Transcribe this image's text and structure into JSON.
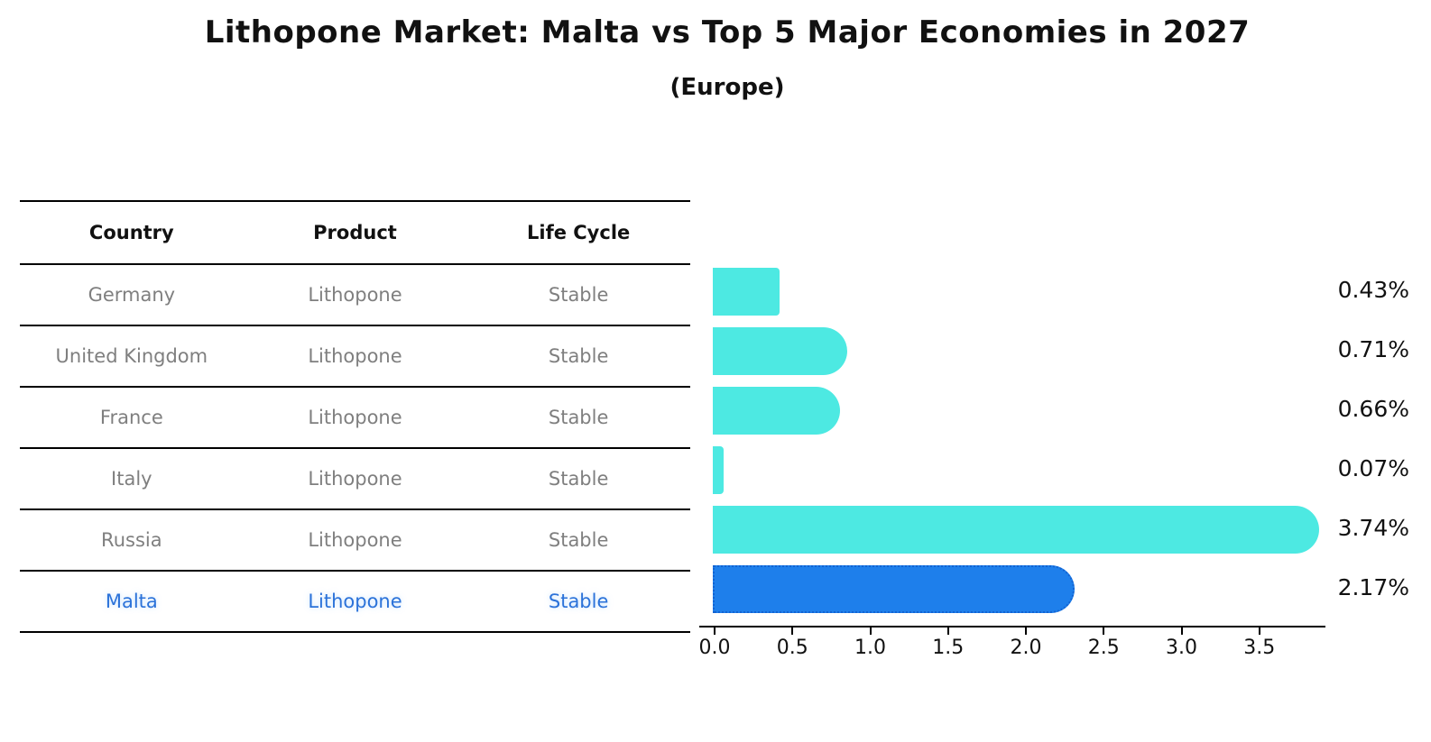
{
  "title": "Lithopone Market: Malta vs Top 5 Major Economies in 2027",
  "subtitle": "(Europe)",
  "table": {
    "headers": [
      "Country",
      "Product",
      "Life Cycle"
    ],
    "rows": [
      {
        "country": "Germany",
        "product": "Lithopone",
        "life_cycle": "Stable"
      },
      {
        "country": "United Kingdom",
        "product": "Lithopone",
        "life_cycle": "Stable"
      },
      {
        "country": "France",
        "product": "Lithopone",
        "life_cycle": "Stable"
      },
      {
        "country": "Italy",
        "product": "Lithopone",
        "life_cycle": "Stable"
      },
      {
        "country": "Russia",
        "product": "Lithopone",
        "life_cycle": "Stable"
      },
      {
        "country": "Malta",
        "product": "Lithopone",
        "life_cycle": "Stable"
      }
    ]
  },
  "chart_data": {
    "type": "bar",
    "orientation": "horizontal",
    "title": "Lithopone Market: Malta vs Top 5 Major Economies in 2027",
    "subtitle": "(Europe)",
    "categories": [
      "Germany",
      "United Kingdom",
      "France",
      "Italy",
      "Russia",
      "Malta"
    ],
    "values": [
      0.43,
      0.71,
      0.66,
      0.07,
      3.74,
      2.17
    ],
    "value_labels": [
      "0.43%",
      "0.71%",
      "0.66%",
      "0.07%",
      "3.74%",
      "2.17%"
    ],
    "x_ticks": [
      "0.0",
      "0.5",
      "1.0",
      "1.5",
      "2.0",
      "2.5",
      "3.0",
      "3.5"
    ],
    "xlim": [
      0,
      3.93
    ],
    "grid": false,
    "legend": false,
    "highlight_index": 5,
    "units": "percent"
  },
  "colors": {
    "bar_color": "#4de9e2",
    "highlight_color": "#1e7feb",
    "highlight_border": "#1263d2",
    "highlight_text": "#2b72d9",
    "row_text": "#7f7f7f",
    "axis_color": "#000000"
  }
}
